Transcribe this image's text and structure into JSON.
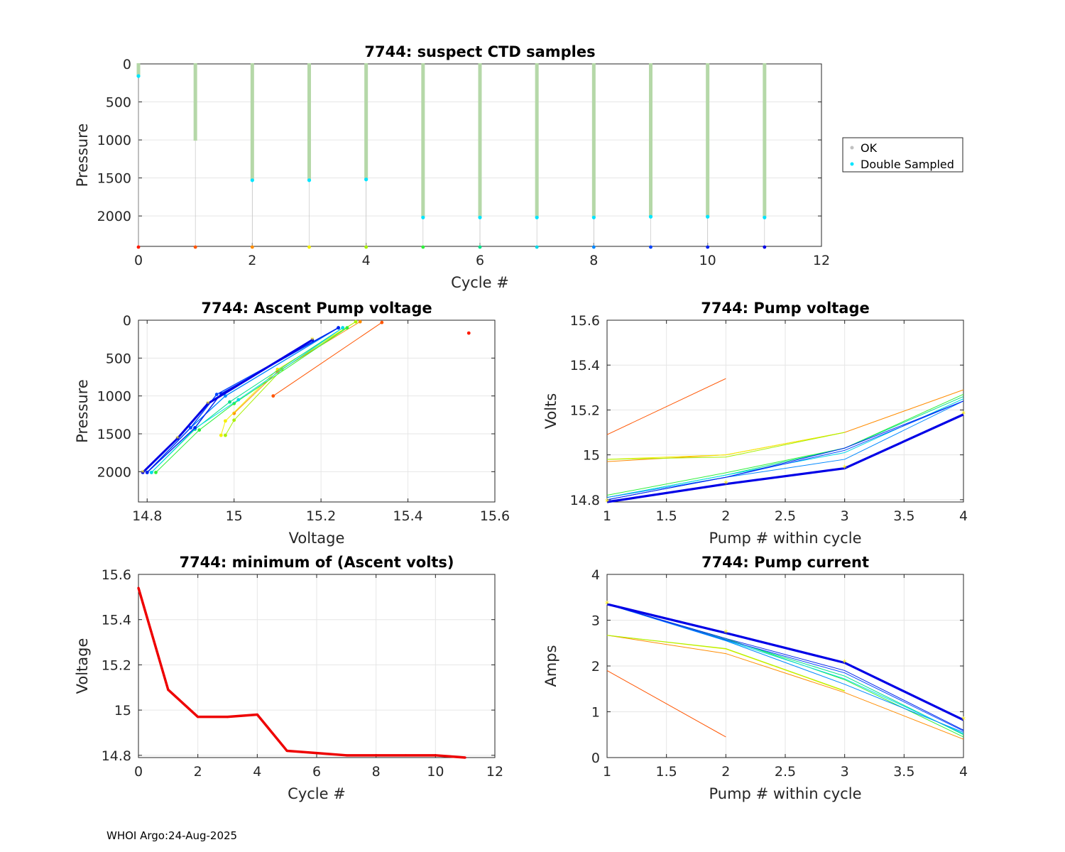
{
  "footer": "WHOI Argo:24-Aug-2025",
  "legend": {
    "items": [
      {
        "label": "OK",
        "color": "#c0c0c0"
      },
      {
        "label": "Double Sampled",
        "color": "#00e5ff"
      }
    ]
  },
  "cycle_colors": [
    "#ff1a00",
    "#ff5500",
    "#ff8c00",
    "#f5f000",
    "#a8f000",
    "#2ef03a",
    "#00e08a",
    "#00d8e8",
    "#0088ff",
    "#0044ff",
    "#0022ee",
    "#0000e6"
  ],
  "chart_data": [
    {
      "id": "ctd",
      "type": "scatter",
      "title": "7744: suspect CTD samples",
      "xlabel": "Cycle #",
      "ylabel": "Pressure",
      "xlim": [
        0,
        12
      ],
      "ylim": [
        2400,
        0
      ],
      "xticks": [
        0,
        2,
        4,
        6,
        8,
        10,
        12
      ],
      "yticks": [
        0,
        500,
        1000,
        1500,
        2000
      ],
      "grid": true,
      "legend_position": "outside-right",
      "ok_color": "#b5d8a8",
      "ok_profiles": [
        {
          "cycle": 0,
          "pmin": 0,
          "pmax": 160
        },
        {
          "cycle": 1,
          "pmin": 0,
          "pmax": 1010
        },
        {
          "cycle": 2,
          "pmin": 0,
          "pmax": 1530
        },
        {
          "cycle": 3,
          "pmin": 0,
          "pmax": 1530
        },
        {
          "cycle": 4,
          "pmin": 0,
          "pmax": 1520
        },
        {
          "cycle": 5,
          "pmin": 0,
          "pmax": 2020
        },
        {
          "cycle": 6,
          "pmin": 0,
          "pmax": 2020
        },
        {
          "cycle": 7,
          "pmin": 0,
          "pmax": 2020
        },
        {
          "cycle": 8,
          "pmin": 0,
          "pmax": 2020
        },
        {
          "cycle": 9,
          "pmin": 0,
          "pmax": 2010
        },
        {
          "cycle": 10,
          "pmin": 0,
          "pmax": 2010
        },
        {
          "cycle": 11,
          "pmin": 0,
          "pmax": 2020
        }
      ],
      "double_sampled": [
        {
          "cycle": 0,
          "p": 160
        },
        {
          "cycle": 2,
          "p": 1530
        },
        {
          "cycle": 3,
          "p": 1530
        },
        {
          "cycle": 4,
          "p": 1520
        },
        {
          "cycle": 5,
          "p": 2020
        },
        {
          "cycle": 6,
          "p": 2020
        },
        {
          "cycle": 7,
          "p": 2020
        },
        {
          "cycle": 8,
          "p": 2020
        },
        {
          "cycle": 9,
          "p": 2010
        },
        {
          "cycle": 10,
          "p": 2010
        },
        {
          "cycle": 11,
          "p": 2020
        }
      ],
      "bottom_markers_p": 2400
    },
    {
      "id": "ascent",
      "type": "line",
      "title": "7744: Ascent Pump voltage",
      "xlabel": "Voltage",
      "ylabel": "Pressure",
      "xlim": [
        14.78,
        15.6
      ],
      "ylim": [
        2400,
        0
      ],
      "xticks": [
        14.8,
        15,
        15.2,
        15.4,
        15.6
      ],
      "xticklabels": [
        "14.8",
        "15",
        "15.2",
        "15.4",
        "15.6"
      ],
      "yticks": [
        0,
        500,
        1000,
        1500,
        2000
      ],
      "grid": true,
      "series": [
        {
          "cycle": 0,
          "v": [
            15.54
          ],
          "p": [
            170
          ]
        },
        {
          "cycle": 1,
          "v": [
            15.09,
            15.34
          ],
          "p": [
            1000,
            30
          ]
        },
        {
          "cycle": 2,
          "v": [
            15.0,
            15.1,
            15.29
          ],
          "p": [
            1230,
            680,
            20
          ]
        },
        {
          "cycle": 3,
          "v": [
            14.97,
            14.98,
            15.1,
            15.28
          ],
          "p": [
            1520,
            1330,
            650,
            20
          ]
        },
        {
          "cycle": 4,
          "v": [
            14.98,
            15.0,
            15.11,
            15.28
          ],
          "p": [
            1520,
            1320,
            650,
            20
          ]
        },
        {
          "cycle": 5,
          "v": [
            14.82,
            14.92,
            15.0,
            15.26
          ],
          "p": [
            2010,
            1450,
            1100,
            100
          ]
        },
        {
          "cycle": 6,
          "v": [
            14.81,
            14.91,
            14.99,
            15.25
          ],
          "p": [
            2010,
            1440,
            1080,
            100
          ]
        },
        {
          "cycle": 7,
          "v": [
            14.81,
            14.91,
            15.01,
            15.25
          ],
          "p": [
            2010,
            1430,
            1050,
            100
          ]
        },
        {
          "cycle": 8,
          "v": [
            14.8,
            14.9,
            14.98,
            15.24
          ],
          "p": [
            2010,
            1420,
            1000,
            100
          ]
        },
        {
          "cycle": 9,
          "v": [
            14.8,
            14.9,
            14.96,
            15.24
          ],
          "p": [
            2010,
            1420,
            980,
            100
          ]
        },
        {
          "cycle": 10,
          "v": [
            14.8,
            14.91,
            14.97,
            15.24
          ],
          "p": [
            2010,
            1420,
            970,
            100
          ]
        },
        {
          "cycle": 11,
          "v": [
            14.79,
            14.87,
            14.94,
            15.18
          ],
          "p": [
            2010,
            1560,
            1100,
            260
          ]
        }
      ]
    },
    {
      "id": "pumpv",
      "type": "line",
      "title": "7744: Pump voltage",
      "xlabel": "Pump # within cycle",
      "ylabel": "Volts",
      "xlim": [
        1,
        4
      ],
      "ylim": [
        14.79,
        15.6
      ],
      "xticks": [
        1,
        1.5,
        2,
        2.5,
        3,
        3.5,
        4
      ],
      "xticklabels": [
        "1",
        "1.5",
        "2",
        "2.5",
        "3",
        "3.5",
        "4"
      ],
      "yticks": [
        14.8,
        15,
        15.2,
        15.4,
        15.6
      ],
      "yticklabels": [
        "14.8",
        "15",
        "15.2",
        "15.4",
        "15.6"
      ],
      "grid": true,
      "series": [
        {
          "cycle": 1,
          "x": [
            1,
            2
          ],
          "y": [
            15.09,
            15.34
          ]
        },
        {
          "cycle": 2,
          "x": [
            1,
            2,
            3,
            4
          ],
          "y": [
            14.97,
            15.0,
            15.1,
            15.29
          ]
        },
        {
          "cycle": 3,
          "x": [
            1,
            2,
            3
          ],
          "y": [
            14.98,
            15.0,
            15.1
          ]
        },
        {
          "cycle": 4,
          "x": [
            1,
            2,
            3
          ],
          "y": [
            14.98,
            14.99,
            15.1
          ]
        },
        {
          "cycle": 5,
          "x": [
            1,
            2,
            3,
            4
          ],
          "y": [
            14.82,
            14.92,
            15.03,
            15.27
          ]
        },
        {
          "cycle": 6,
          "x": [
            1,
            2,
            3,
            4
          ],
          "y": [
            14.81,
            14.91,
            15.03,
            15.26
          ]
        },
        {
          "cycle": 7,
          "x": [
            1,
            2,
            3,
            4
          ],
          "y": [
            14.81,
            14.91,
            15.01,
            15.25
          ]
        },
        {
          "cycle": 8,
          "x": [
            1,
            2,
            3,
            4
          ],
          "y": [
            14.81,
            14.9,
            14.98,
            15.24
          ]
        },
        {
          "cycle": 9,
          "x": [
            1,
            2,
            3,
            4
          ],
          "y": [
            14.8,
            14.9,
            15.02,
            15.24
          ]
        },
        {
          "cycle": 10,
          "x": [
            1,
            2,
            3,
            4
          ],
          "y": [
            14.8,
            14.9,
            15.03,
            15.24
          ]
        },
        {
          "cycle": 11,
          "x": [
            1,
            2,
            3,
            4
          ],
          "y": [
            14.79,
            14.87,
            14.94,
            15.18
          ]
        }
      ]
    },
    {
      "id": "minv",
      "type": "line",
      "title": "7744: minimum of (Ascent volts)",
      "xlabel": "Cycle #",
      "ylabel": "Voltage",
      "xlim": [
        0,
        12
      ],
      "ylim": [
        14.79,
        15.6
      ],
      "xticks": [
        0,
        2,
        4,
        6,
        8,
        10,
        12
      ],
      "yticks": [
        14.8,
        15,
        15.2,
        15.4,
        15.6
      ],
      "yticklabels": [
        "14.8",
        "15",
        "15.2",
        "15.4",
        "15.6"
      ],
      "grid": true,
      "series": [
        {
          "name": "min ascent volts",
          "color": "#ee0000",
          "x": [
            0,
            1,
            2,
            3,
            4,
            5,
            6,
            7,
            8,
            9,
            10,
            11
          ],
          "y": [
            15.54,
            15.09,
            14.97,
            14.97,
            14.98,
            14.82,
            14.81,
            14.8,
            14.8,
            14.8,
            14.8,
            14.79
          ]
        }
      ]
    },
    {
      "id": "pumpc",
      "type": "line",
      "title": "7744: Pump current",
      "xlabel": "Pump # within cycle",
      "ylabel": "Amps",
      "xlim": [
        1,
        4
      ],
      "ylim": [
        0,
        4
      ],
      "xticks": [
        1,
        1.5,
        2,
        2.5,
        3,
        3.5,
        4
      ],
      "xticklabels": [
        "1",
        "1.5",
        "2",
        "2.5",
        "3",
        "3.5",
        "4"
      ],
      "yticks": [
        0,
        1,
        2,
        3,
        4
      ],
      "grid": true,
      "series": [
        {
          "cycle": 1,
          "x": [
            1,
            2
          ],
          "y": [
            1.9,
            0.45
          ]
        },
        {
          "cycle": 2,
          "x": [
            1,
            2,
            3,
            4
          ],
          "y": [
            2.67,
            2.27,
            1.42,
            0.4
          ]
        },
        {
          "cycle": 3,
          "x": [
            1,
            2,
            3
          ],
          "y": [
            2.67,
            2.37,
            1.45
          ]
        },
        {
          "cycle": 4,
          "x": [
            1,
            2,
            3
          ],
          "y": [
            2.67,
            2.38,
            1.46
          ]
        },
        {
          "cycle": 5,
          "x": [
            1,
            2,
            3,
            4
          ],
          "y": [
            3.35,
            2.6,
            1.7,
            0.45
          ]
        },
        {
          "cycle": 6,
          "x": [
            1,
            2,
            3,
            4
          ],
          "y": [
            3.35,
            2.58,
            1.78,
            0.5
          ]
        },
        {
          "cycle": 7,
          "x": [
            1,
            2,
            3,
            4
          ],
          "y": [
            3.35,
            2.56,
            1.72,
            0.52
          ]
        },
        {
          "cycle": 8,
          "x": [
            1,
            2,
            3,
            4
          ],
          "y": [
            3.35,
            2.55,
            1.6,
            0.55
          ]
        },
        {
          "cycle": 9,
          "x": [
            1,
            2,
            3,
            4
          ],
          "y": [
            3.35,
            2.57,
            1.85,
            0.58
          ]
        },
        {
          "cycle": 10,
          "x": [
            1,
            2,
            3,
            4
          ],
          "y": [
            3.35,
            2.6,
            1.9,
            0.6
          ]
        },
        {
          "cycle": 11,
          "x": [
            1,
            2,
            3,
            4
          ],
          "y": [
            3.35,
            2.72,
            2.07,
            0.82
          ]
        }
      ]
    }
  ]
}
